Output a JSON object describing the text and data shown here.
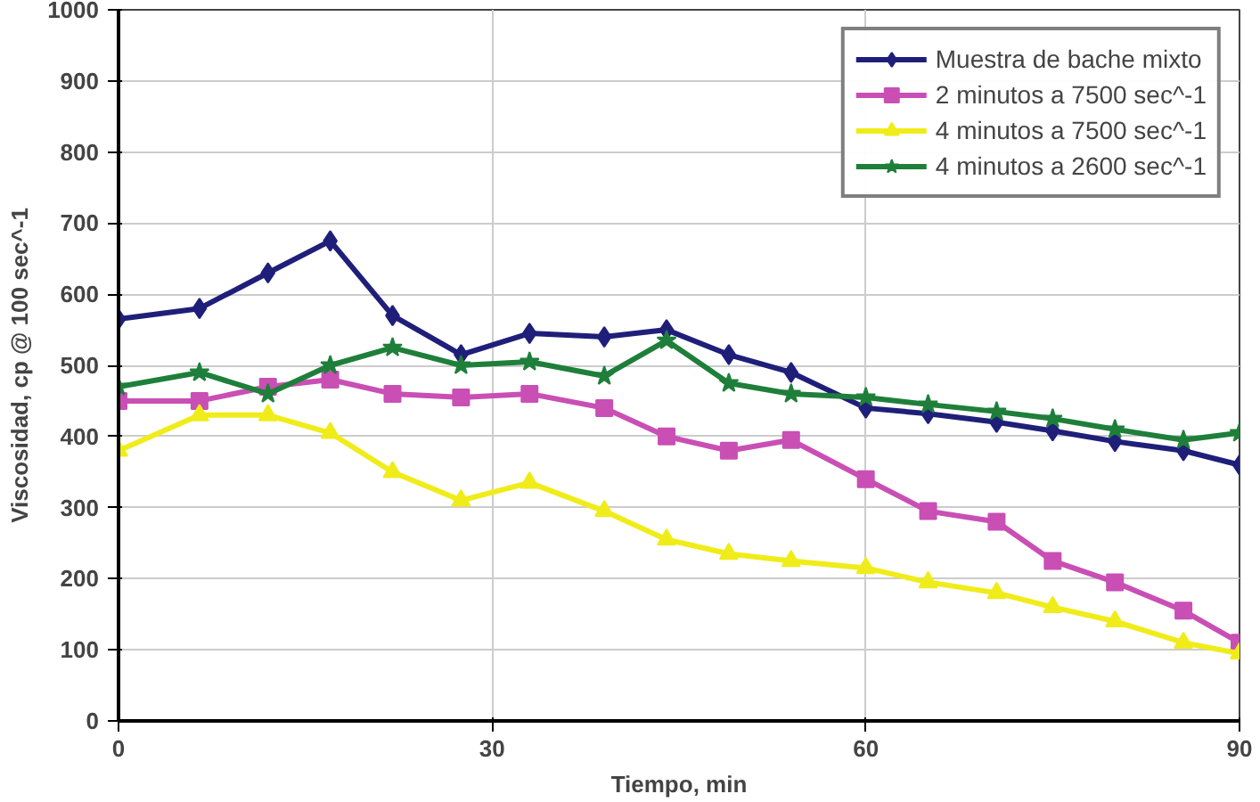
{
  "chart_data": {
    "type": "line",
    "xlabel": "Tiempo, min",
    "ylabel": "Viscosidad, cp @ 100 sec^-1",
    "x": [
      0,
      6.5,
      12,
      17,
      22,
      27.5,
      33,
      39,
      44,
      49,
      54,
      60,
      65,
      70.5,
      75,
      80,
      85.5,
      90
    ],
    "xlim": [
      0,
      90
    ],
    "xticks": [
      0,
      30,
      60,
      90
    ],
    "ylim": [
      0,
      1000
    ],
    "yticks": [
      0,
      100,
      200,
      300,
      400,
      500,
      600,
      700,
      800,
      900,
      1000
    ],
    "grid": true,
    "legend": "top right",
    "line_style": "solid",
    "series": [
      {
        "name": "Muestra de bache mixto",
        "color": "#1f1f7a",
        "marker": "diamond",
        "values": [
          565,
          580,
          630,
          675,
          570,
          515,
          545,
          540,
          550,
          515,
          490,
          440,
          432,
          420,
          408,
          393,
          380,
          360
        ]
      },
      {
        "name": "2 minutos a 7500 sec^-1",
        "color": "#c94fb5",
        "marker": "square",
        "values": [
          450,
          450,
          470,
          480,
          460,
          455,
          460,
          440,
          400,
          380,
          395,
          340,
          295,
          280,
          225,
          195,
          155,
          110
        ]
      },
      {
        "name": "4 minutos a 7500 sec^-1",
        "color": "#f0ec1a",
        "marker": "triangle",
        "values": [
          380,
          430,
          430,
          405,
          350,
          310,
          335,
          295,
          255,
          235,
          225,
          215,
          195,
          180,
          160,
          140,
          110,
          95
        ]
      },
      {
        "name": "4 minutos a 2600 sec^-1",
        "color": "#1e7f3a",
        "marker": "star",
        "values": [
          470,
          490,
          460,
          500,
          525,
          500,
          505,
          485,
          535,
          475,
          460,
          455,
          445,
          435,
          425,
          410,
          395,
          405
        ]
      }
    ]
  }
}
